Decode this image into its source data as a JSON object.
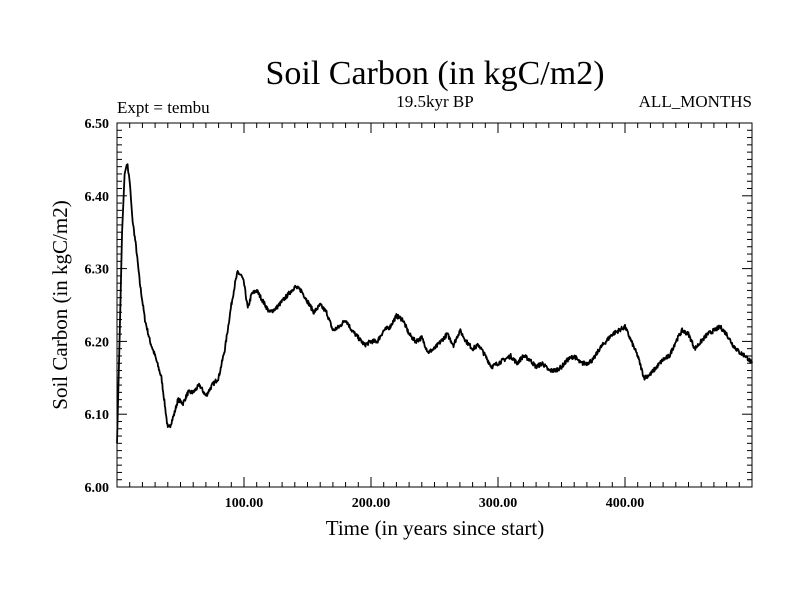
{
  "chart_data": {
    "type": "line",
    "title": "Soil Carbon (in kgC/m2)",
    "subtitle_left": "Expt = tembu",
    "subtitle_center": "19.5kyr BP",
    "subtitle_right": "ALL_MONTHS",
    "xlabel": "Time (in years since start)",
    "ylabel": "Soil Carbon (in kgC/m2)",
    "xlim": [
      0,
      500
    ],
    "ylim": [
      6.0,
      6.5
    ],
    "x_ticks": [
      100,
      200,
      300,
      400
    ],
    "x_tick_labels": [
      "100.00",
      "200.00",
      "300.00",
      "400.00"
    ],
    "y_ticks": [
      6.0,
      6.1,
      6.2,
      6.3,
      6.4,
      6.5
    ],
    "y_tick_labels": [
      "6.00",
      "6.10",
      "6.20",
      "6.30",
      "6.40",
      "6.50"
    ],
    "series": [
      {
        "name": "Soil Carbon",
        "x": [
          0,
          2,
          4,
          6,
          8,
          10,
          12,
          15,
          18,
          22,
          26,
          30,
          35,
          40,
          42,
          45,
          48,
          52,
          56,
          60,
          65,
          70,
          75,
          80,
          85,
          90,
          93,
          95,
          98,
          100,
          103,
          106,
          110,
          115,
          120,
          125,
          130,
          135,
          140,
          145,
          150,
          155,
          160,
          165,
          170,
          175,
          180,
          185,
          190,
          195,
          200,
          205,
          210,
          215,
          220,
          225,
          230,
          235,
          240,
          245,
          250,
          255,
          260,
          265,
          270,
          275,
          280,
          285,
          290,
          295,
          300,
          305,
          310,
          315,
          320,
          325,
          330,
          335,
          340,
          345,
          350,
          355,
          360,
          365,
          370,
          375,
          380,
          385,
          390,
          395,
          400,
          405,
          410,
          415,
          420,
          425,
          430,
          435,
          440,
          445,
          450,
          455,
          460,
          465,
          470,
          475,
          480,
          485,
          490,
          495,
          500
        ],
        "values": [
          6.06,
          6.2,
          6.35,
          6.43,
          6.445,
          6.42,
          6.37,
          6.33,
          6.28,
          6.23,
          6.2,
          6.18,
          6.15,
          6.08,
          6.085,
          6.1,
          6.12,
          6.115,
          6.13,
          6.13,
          6.14,
          6.125,
          6.14,
          6.15,
          6.19,
          6.25,
          6.28,
          6.295,
          6.29,
          6.28,
          6.245,
          6.265,
          6.27,
          6.255,
          6.24,
          6.245,
          6.255,
          6.265,
          6.275,
          6.27,
          6.255,
          6.24,
          6.25,
          6.24,
          6.215,
          6.22,
          6.23,
          6.215,
          6.205,
          6.195,
          6.2,
          6.2,
          6.215,
          6.22,
          6.235,
          6.23,
          6.21,
          6.2,
          6.205,
          6.185,
          6.19,
          6.2,
          6.21,
          6.195,
          6.215,
          6.2,
          6.19,
          6.195,
          6.18,
          6.165,
          6.17,
          6.175,
          6.18,
          6.17,
          6.18,
          6.175,
          6.165,
          6.17,
          6.16,
          6.16,
          6.165,
          6.175,
          6.18,
          6.17,
          6.17,
          6.175,
          6.19,
          6.2,
          6.21,
          6.215,
          6.22,
          6.2,
          6.18,
          6.15,
          6.155,
          6.165,
          6.175,
          6.18,
          6.2,
          6.215,
          6.21,
          6.19,
          6.2,
          6.21,
          6.215,
          6.22,
          6.21,
          6.195,
          6.185,
          6.18,
          6.17
        ]
      }
    ]
  }
}
